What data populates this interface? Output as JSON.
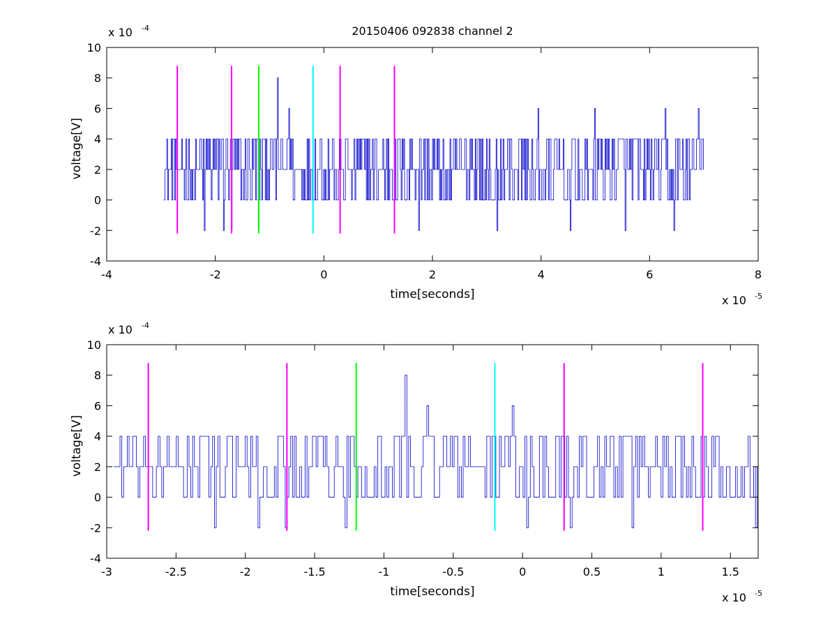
{
  "figure": {
    "title": "20150406 092838 channel 2"
  },
  "colors": {
    "signal": "#0000cc",
    "marker_magenta": "#ff00ff",
    "marker_green": "#00ff00",
    "marker_cyan": "#00ffff",
    "axes": "#000000",
    "background": "#ffffff"
  },
  "chart_data": [
    {
      "type": "line",
      "title": "20150406 092838 channel 2",
      "xlabel": "time[seconds]",
      "ylabel": "voltage[V]",
      "x_exponent_base": "x 10",
      "x_exponent_power": "-5",
      "y_exponent_base": "x 10",
      "y_exponent_power": "-4",
      "xlim": [
        -4,
        8
      ],
      "ylim": [
        -4,
        10
      ],
      "xticks": [
        -4,
        -2,
        0,
        2,
        4,
        6,
        8
      ],
      "xtick_labels": [
        "-4",
        "-2",
        "0",
        "2",
        "4",
        "6",
        "8"
      ],
      "yticks": [
        -4,
        -2,
        0,
        2,
        4,
        6,
        8,
        10
      ],
      "ytick_labels": [
        "-4",
        "-2",
        "0",
        "2",
        "4",
        "6",
        "8",
        "10"
      ],
      "grid": false,
      "series": [
        {
          "color": "#0000cc",
          "x_range": [
            -2.95,
            7.0
          ],
          "baseline_levels": [
            0,
            2,
            4
          ],
          "peaks": [
            {
              "x": -0.84,
              "y": 8
            },
            {
              "x": -0.64,
              "y": 6
            },
            {
              "x": 3.95,
              "y": 6
            },
            {
              "x": 5.0,
              "y": 6
            },
            {
              "x": 6.3,
              "y": 6
            },
            {
              "x": 6.9,
              "y": 6
            }
          ],
          "dips": [
            {
              "x": -2.2,
              "y": -2
            },
            {
              "x": -1.85,
              "y": -2
            },
            {
              "x": -1.7,
              "y": -2
            },
            {
              "x": -1.2,
              "y": -2
            },
            {
              "x": 1.75,
              "y": -2
            },
            {
              "x": 3.2,
              "y": -2
            },
            {
              "x": 4.55,
              "y": -2
            },
            {
              "x": 5.55,
              "y": -2
            },
            {
              "x": 6.45,
              "y": -2
            }
          ]
        }
      ],
      "markers": [
        {
          "x": -2.7,
          "y_range": [
            -2.2,
            8.8
          ],
          "color": "#ff00ff"
        },
        {
          "x": -1.7,
          "y_range": [
            -2.2,
            8.8
          ],
          "color": "#ff00ff"
        },
        {
          "x": -1.2,
          "y_range": [
            -2.2,
            8.8
          ],
          "color": "#00ff00"
        },
        {
          "x": -0.2,
          "y_range": [
            -2.2,
            8.8
          ],
          "color": "#00ffff"
        },
        {
          "x": 0.3,
          "y_range": [
            -2.2,
            8.8
          ],
          "color": "#ff00ff"
        },
        {
          "x": 1.3,
          "y_range": [
            -2.2,
            8.8
          ],
          "color": "#ff00ff"
        }
      ]
    },
    {
      "type": "line",
      "title": "",
      "xlabel": "time[seconds]",
      "ylabel": "voltage[V]",
      "x_exponent_base": "x 10",
      "x_exponent_power": "-5",
      "y_exponent_base": "x 10",
      "y_exponent_power": "-4",
      "xlim": [
        -3.0,
        1.7
      ],
      "ylim": [
        -4,
        10
      ],
      "xticks": [
        -3,
        -2.5,
        -2,
        -1.5,
        -1,
        -0.5,
        0,
        0.5,
        1,
        1.5
      ],
      "xtick_labels": [
        "-3",
        "-2.5",
        "-2",
        "-1.5",
        "-1",
        "-0.5",
        "0",
        "0.5",
        "1",
        "1.5"
      ],
      "yticks": [
        -4,
        -2,
        0,
        2,
        4,
        6,
        8,
        10
      ],
      "ytick_labels": [
        "-4",
        "-2",
        "0",
        "2",
        "4",
        "6",
        "8",
        "10"
      ],
      "grid": false,
      "series": [
        {
          "color": "#0000cc",
          "x_range": [
            -2.95,
            1.7
          ],
          "baseline_levels": [
            0,
            2,
            4
          ],
          "peaks": [
            {
              "x": -0.84,
              "y": 8
            },
            {
              "x": -0.68,
              "y": 6
            },
            {
              "x": -0.07,
              "y": 6
            }
          ],
          "dips": [
            {
              "x": -2.22,
              "y": -2
            },
            {
              "x": -1.9,
              "y": -2
            },
            {
              "x": -1.71,
              "y": -2
            },
            {
              "x": -1.27,
              "y": -2
            },
            {
              "x": 0.04,
              "y": -2
            },
            {
              "x": 0.35,
              "y": -2
            },
            {
              "x": 0.8,
              "y": -2
            },
            {
              "x": 1.69,
              "y": -2
            }
          ]
        }
      ],
      "markers": [
        {
          "x": -2.7,
          "y_range": [
            -2.2,
            8.8
          ],
          "color": "#ff00ff"
        },
        {
          "x": -1.7,
          "y_range": [
            -2.2,
            8.8
          ],
          "color": "#ff00ff"
        },
        {
          "x": -1.2,
          "y_range": [
            -2.2,
            8.8
          ],
          "color": "#00ff00"
        },
        {
          "x": -0.2,
          "y_range": [
            -2.2,
            8.8
          ],
          "color": "#00ffff"
        },
        {
          "x": 0.3,
          "y_range": [
            -2.2,
            8.8
          ],
          "color": "#ff00ff"
        },
        {
          "x": 1.3,
          "y_range": [
            -2.2,
            8.8
          ],
          "color": "#ff00ff"
        }
      ]
    }
  ]
}
